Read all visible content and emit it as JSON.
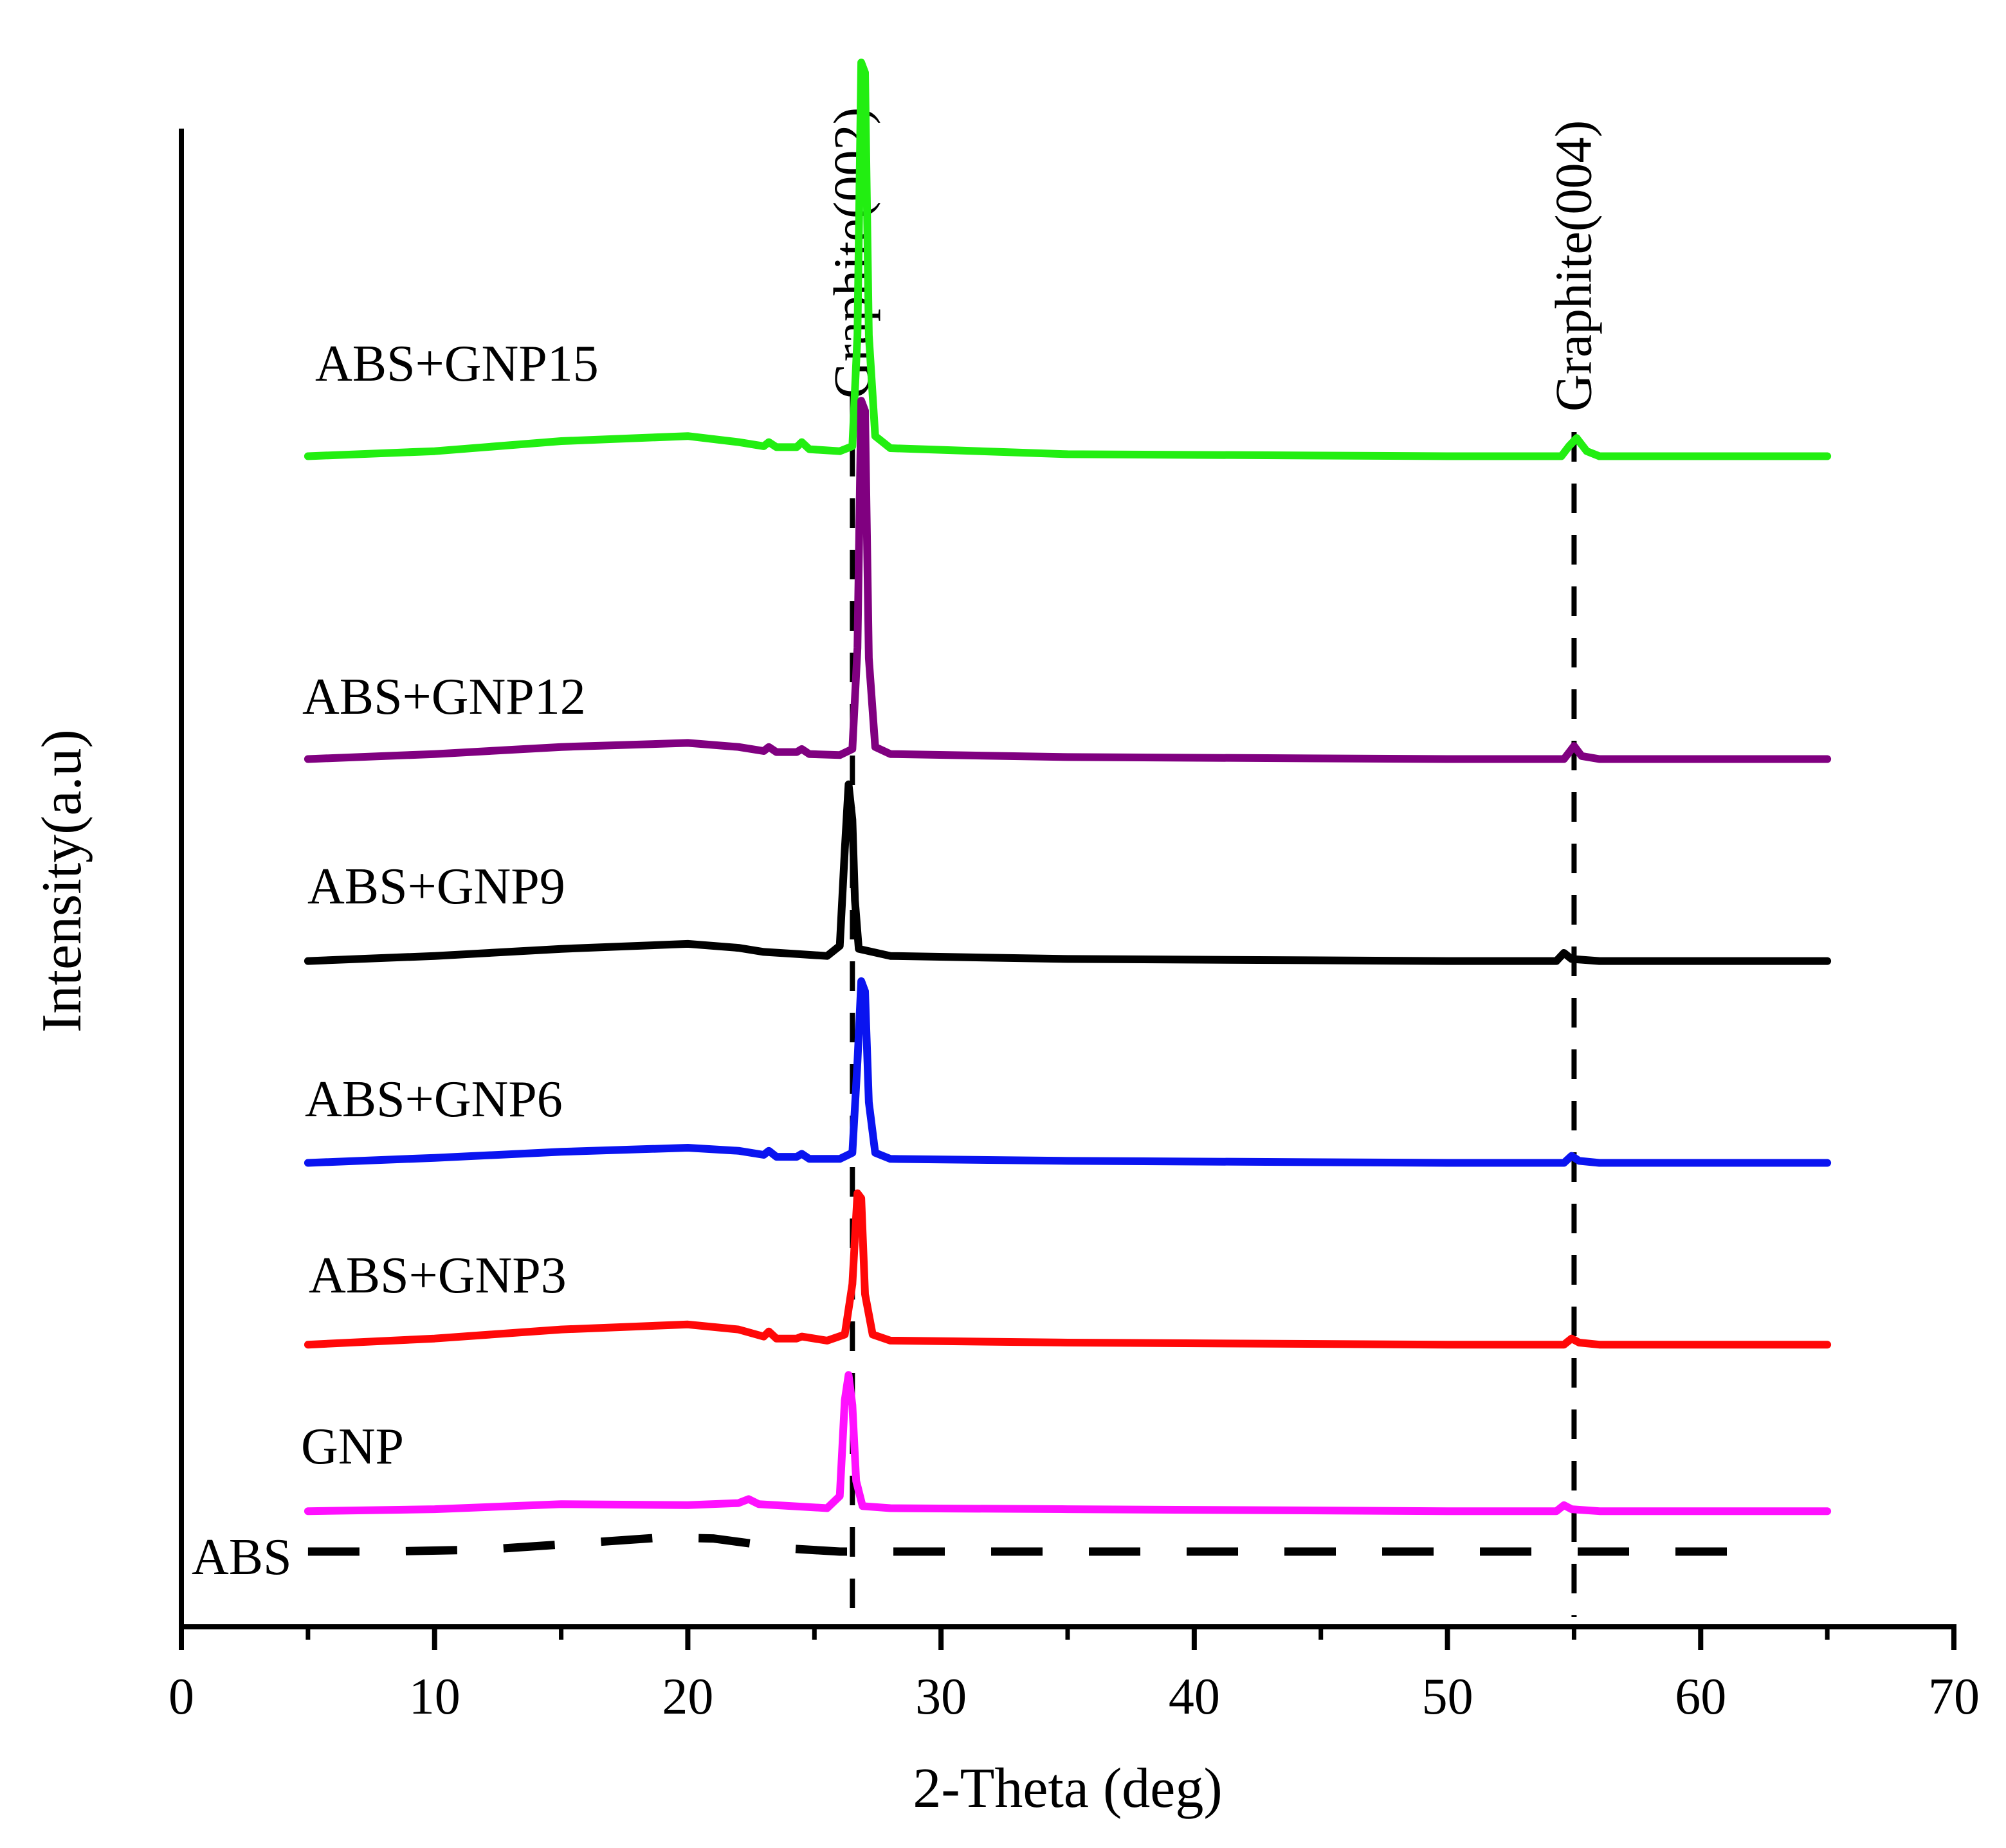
{
  "chart_data": {
    "type": "line",
    "title": "",
    "xlabel": "2-Theta (deg)",
    "ylabel": "Intensity(a.u)",
    "xlim": [
      0,
      70
    ],
    "xticks": [
      0,
      10,
      20,
      30,
      40,
      50,
      60,
      70
    ],
    "xtick_labels": [
      "0",
      "10",
      "20",
      "30",
      "40",
      "50",
      "60",
      "70"
    ],
    "y_ticks_shown": false,
    "grid": false,
    "legend": "none; series labeled inline at left",
    "reference_lines": [
      {
        "name": "graphite-002",
        "label": "Graphite(002)",
        "x": 26.5,
        "style": "dashed"
      },
      {
        "name": "graphite-004",
        "label": "Graphite(004)",
        "x": 55.0,
        "style": "dashed"
      }
    ],
    "series": [
      {
        "name": "ABS+GNP15",
        "label": "ABS+GNP15",
        "color": "#22ee11",
        "style": "solid",
        "baseline": 10.85,
        "points": [
          [
            5,
            0
          ],
          [
            10,
            0.05
          ],
          [
            15,
            0.15
          ],
          [
            20,
            0.2
          ],
          [
            22,
            0.14
          ],
          [
            23,
            0.1
          ],
          [
            23.2,
            0.14
          ],
          [
            23.5,
            0.09
          ],
          [
            24.3,
            0.09
          ],
          [
            24.5,
            0.14
          ],
          [
            24.8,
            0.07
          ],
          [
            26,
            0.05
          ],
          [
            26.5,
            0.1
          ],
          [
            26.7,
            1.2
          ],
          [
            26.85,
            3.9
          ],
          [
            27.0,
            3.8
          ],
          [
            27.15,
            1.2
          ],
          [
            27.4,
            0.2
          ],
          [
            28,
            0.08
          ],
          [
            35,
            0.02
          ],
          [
            50,
            0
          ],
          [
            54.5,
            0
          ],
          [
            54.8,
            0.1
          ],
          [
            55.1,
            0.18
          ],
          [
            55.5,
            0.05
          ],
          [
            56,
            0
          ],
          [
            65,
            0
          ]
        ]
      },
      {
        "name": "ABS+GNP12",
        "label": "ABS+GNP12",
        "color": "#800080",
        "style": "solid",
        "baseline": 7.85,
        "points": [
          [
            5,
            0
          ],
          [
            10,
            0.05
          ],
          [
            15,
            0.12
          ],
          [
            20,
            0.16
          ],
          [
            22,
            0.12
          ],
          [
            23,
            0.08
          ],
          [
            23.2,
            0.12
          ],
          [
            23.5,
            0.07
          ],
          [
            24.3,
            0.07
          ],
          [
            24.5,
            0.1
          ],
          [
            24.8,
            0.05
          ],
          [
            26,
            0.04
          ],
          [
            26.5,
            0.1
          ],
          [
            26.7,
            1.1
          ],
          [
            26.85,
            3.55
          ],
          [
            27.0,
            3.45
          ],
          [
            27.15,
            1.0
          ],
          [
            27.4,
            0.12
          ],
          [
            28,
            0.05
          ],
          [
            35,
            0.02
          ],
          [
            50,
            0
          ],
          [
            54.6,
            0
          ],
          [
            55.0,
            0.13
          ],
          [
            55.3,
            0.03
          ],
          [
            56,
            0
          ],
          [
            65,
            0
          ]
        ]
      },
      {
        "name": "ABS+GNP9",
        "label": "ABS+GNP9",
        "color": "#000000",
        "style": "solid",
        "baseline": 5.85,
        "points": [
          [
            5,
            0
          ],
          [
            10,
            0.05
          ],
          [
            15,
            0.12
          ],
          [
            20,
            0.17
          ],
          [
            22,
            0.13
          ],
          [
            23,
            0.09
          ],
          [
            24.3,
            0.07
          ],
          [
            25.5,
            0.05
          ],
          [
            26.0,
            0.15
          ],
          [
            26.2,
            1.1
          ],
          [
            26.35,
            1.75
          ],
          [
            26.5,
            1.4
          ],
          [
            26.6,
            0.6
          ],
          [
            26.75,
            0.12
          ],
          [
            28,
            0.05
          ],
          [
            35,
            0.02
          ],
          [
            50,
            0
          ],
          [
            54.3,
            0
          ],
          [
            54.6,
            0.08
          ],
          [
            54.9,
            0.02
          ],
          [
            56,
            0
          ],
          [
            65,
            0
          ]
        ]
      },
      {
        "name": "ABS+GNP6",
        "label": "ABS+GNP6",
        "color": "#0a14f0",
        "style": "solid",
        "baseline": 3.85,
        "points": [
          [
            5,
            0
          ],
          [
            10,
            0.05
          ],
          [
            15,
            0.11
          ],
          [
            20,
            0.15
          ],
          [
            22,
            0.12
          ],
          [
            23,
            0.08
          ],
          [
            23.2,
            0.12
          ],
          [
            23.5,
            0.06
          ],
          [
            24.3,
            0.06
          ],
          [
            24.5,
            0.09
          ],
          [
            24.8,
            0.04
          ],
          [
            26,
            0.04
          ],
          [
            26.5,
            0.1
          ],
          [
            26.7,
            1.0
          ],
          [
            26.85,
            1.8
          ],
          [
            27.0,
            1.7
          ],
          [
            27.15,
            0.6
          ],
          [
            27.4,
            0.1
          ],
          [
            28,
            0.04
          ],
          [
            35,
            0.02
          ],
          [
            50,
            0
          ],
          [
            54.6,
            0
          ],
          [
            54.9,
            0.07
          ],
          [
            55.2,
            0.02
          ],
          [
            56,
            0
          ],
          [
            65,
            0
          ]
        ]
      },
      {
        "name": "ABS+GNP3",
        "label": "ABS+GNP3",
        "color": "#ff0808",
        "style": "solid",
        "baseline": 2.05,
        "points": [
          [
            5,
            0
          ],
          [
            10,
            0.06
          ],
          [
            15,
            0.15
          ],
          [
            20,
            0.2
          ],
          [
            22,
            0.15
          ],
          [
            23,
            0.08
          ],
          [
            23.2,
            0.13
          ],
          [
            23.5,
            0.06
          ],
          [
            24.3,
            0.06
          ],
          [
            24.5,
            0.08
          ],
          [
            25.5,
            0.04
          ],
          [
            26.2,
            0.1
          ],
          [
            26.5,
            0.6
          ],
          [
            26.7,
            1.5
          ],
          [
            26.85,
            1.45
          ],
          [
            27.0,
            0.5
          ],
          [
            27.3,
            0.1
          ],
          [
            28,
            0.04
          ],
          [
            35,
            0.02
          ],
          [
            50,
            0
          ],
          [
            54.6,
            0
          ],
          [
            54.9,
            0.06
          ],
          [
            55.2,
            0.02
          ],
          [
            56,
            0
          ],
          [
            65,
            0
          ]
        ]
      },
      {
        "name": "GNP",
        "label": "GNP",
        "color": "#ff10ff",
        "style": "solid",
        "baseline": 0.4,
        "points": [
          [
            5,
            0
          ],
          [
            10,
            0.02
          ],
          [
            15,
            0.07
          ],
          [
            20,
            0.06
          ],
          [
            22,
            0.08
          ],
          [
            22.4,
            0.12
          ],
          [
            22.8,
            0.07
          ],
          [
            25.5,
            0.03
          ],
          [
            26.0,
            0.15
          ],
          [
            26.2,
            1.1
          ],
          [
            26.35,
            1.35
          ],
          [
            26.5,
            1.05
          ],
          [
            26.65,
            0.3
          ],
          [
            26.9,
            0.05
          ],
          [
            28,
            0.03
          ],
          [
            35,
            0.02
          ],
          [
            50,
            0
          ],
          [
            54.3,
            0
          ],
          [
            54.6,
            0.06
          ],
          [
            54.9,
            0.02
          ],
          [
            56,
            0
          ],
          [
            65,
            0
          ]
        ]
      },
      {
        "name": "ABS",
        "label": "ABS",
        "color": "#000000",
        "style": "dashed",
        "baseline": 0,
        "points": [
          [
            5,
            0
          ],
          [
            8,
            0
          ],
          [
            12,
            0.02
          ],
          [
            15,
            0.07
          ],
          [
            19,
            0.14
          ],
          [
            21,
            0.13
          ],
          [
            24,
            0.03
          ],
          [
            26,
            0
          ],
          [
            30,
            0
          ],
          [
            40,
            0
          ],
          [
            50,
            0
          ],
          [
            55,
            0
          ],
          [
            60,
            0
          ],
          [
            62.5,
            0
          ]
        ]
      }
    ]
  }
}
